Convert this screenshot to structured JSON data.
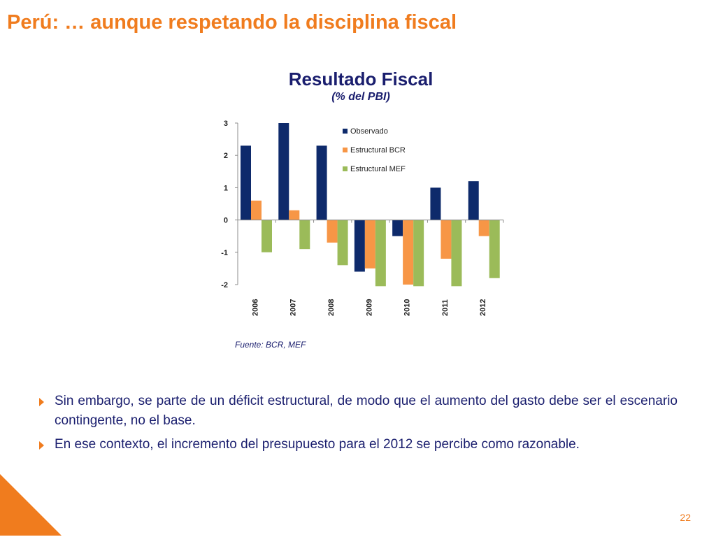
{
  "slide": {
    "title": "Perú: … aunque respetando la disciplina fiscal",
    "page_number": "22",
    "accent_color": "#F07C1E",
    "text_color": "#1A1E6E"
  },
  "chart_data": {
    "type": "bar",
    "title": "Resultado Fiscal",
    "subtitle": "(% del PBI)",
    "categories": [
      "2006",
      "2007",
      "2008",
      "2009",
      "2010",
      "2011",
      "2012"
    ],
    "series": [
      {
        "name": "Observado",
        "color": "#0E2A6B",
        "values": [
          2.3,
          3.0,
          2.3,
          -1.6,
          -0.5,
          1.0,
          1.2
        ]
      },
      {
        "name": "Estructural BCR",
        "color": "#F79646",
        "values": [
          0.6,
          0.3,
          -0.7,
          -1.5,
          -2.0,
          -1.2,
          -0.5
        ]
      },
      {
        "name": "Estructural MEF",
        "color": "#9BBB59",
        "values": [
          -1.0,
          -0.9,
          -1.4,
          -2.05,
          -2.05,
          -2.05,
          -1.8
        ]
      }
    ],
    "yticks": [
      "3",
      "2",
      "1",
      "0",
      "-1",
      "-2"
    ],
    "ylim": [
      -2,
      3
    ],
    "legend_position": "top-right",
    "grid": false,
    "source": "Fuente: BCR, MEF"
  },
  "bullets": [
    "Sin embargo, se parte de un déficit estructural, de modo que el aumento del gasto debe ser el escenario contingente, no el base.",
    "En ese contexto, el incremento del presupuesto para el 2012 se percibe como razonable."
  ]
}
